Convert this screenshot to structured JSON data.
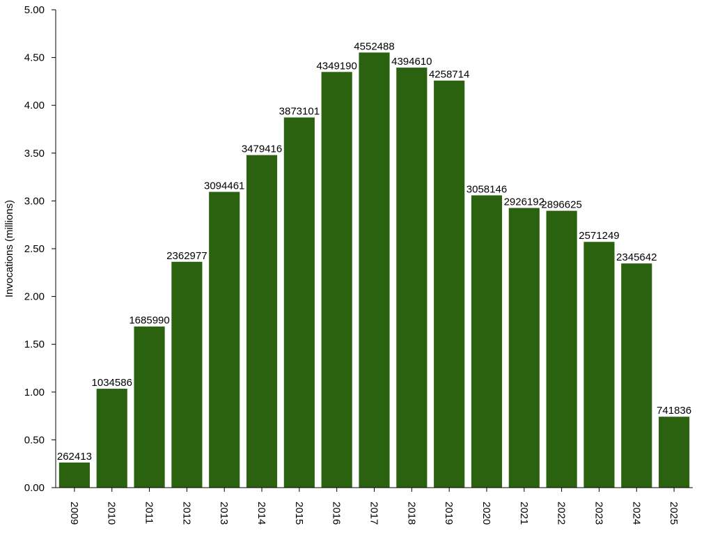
{
  "chart_data": {
    "type": "bar",
    "title": "",
    "xlabel": "",
    "ylabel": "Invocations (millions)",
    "ylim": [
      0,
      5
    ],
    "yticks": [
      "0.00",
      "0.50",
      "1.00",
      "1.50",
      "2.00",
      "2.50",
      "3.00",
      "3.50",
      "4.00",
      "4.50",
      "5.00"
    ],
    "grid": false,
    "bar_color": "#2a620f",
    "categories": [
      "2009",
      "2010",
      "2011",
      "2012",
      "2013",
      "2014",
      "2015",
      "2016",
      "2017",
      "2018",
      "2019",
      "2020",
      "2021",
      "2022",
      "2023",
      "2024",
      "2025"
    ],
    "values": [
      262413,
      1034586,
      1685990,
      2362977,
      3094461,
      3479416,
      3873101,
      4349190,
      4552488,
      4394610,
      4258714,
      3058146,
      2926192,
      2896625,
      2571249,
      2345642,
      741836
    ],
    "data_labels": [
      "262413",
      "1034586",
      "1685990",
      "2362977",
      "3094461",
      "3479416",
      "3873101",
      "4349190",
      "4552488",
      "4394610",
      "4258714",
      "3058146",
      "2926192",
      "2896625",
      "2571249",
      "2345642",
      "741836"
    ]
  }
}
